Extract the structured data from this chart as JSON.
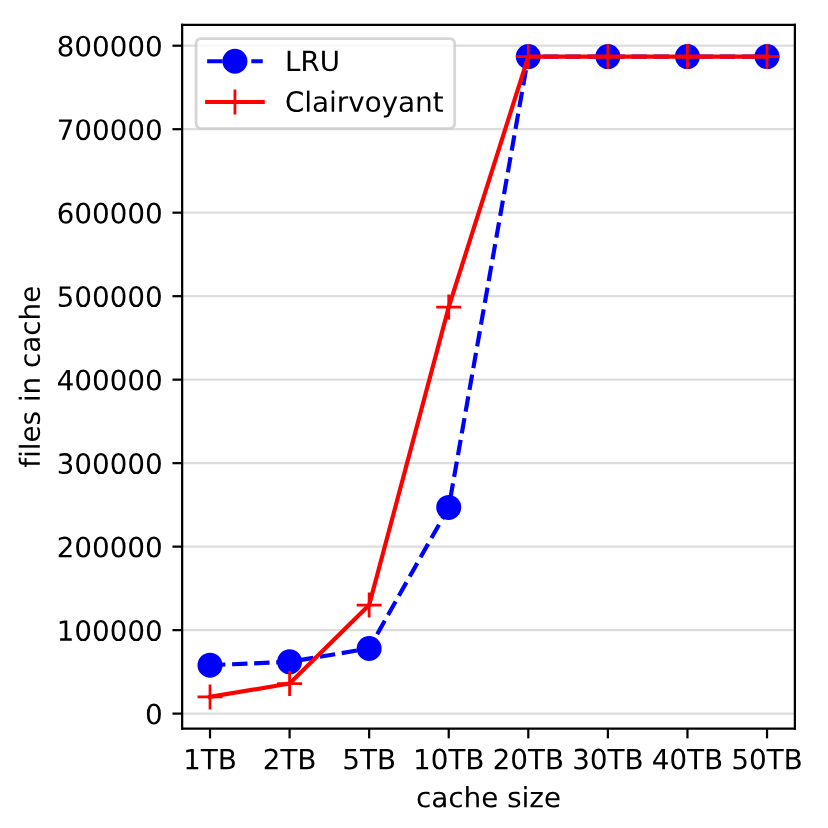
{
  "chart_data": {
    "type": "line",
    "xlabel": "cache size",
    "ylabel": "files in cache",
    "categories": [
      "1TB",
      "2TB",
      "5TB",
      "10TB",
      "20TB",
      "30TB",
      "40TB",
      "50TB"
    ],
    "series": [
      {
        "name": "LRU",
        "color": "#0000ff",
        "marker": "circle",
        "line_style": "dashed",
        "values": [
          58000,
          62000,
          78000,
          247000,
          787000,
          787000,
          787000,
          787000
        ]
      },
      {
        "name": "Clairvoyant",
        "color": "#ff0000",
        "marker": "cross",
        "line_style": "solid",
        "values": [
          20000,
          36000,
          130000,
          487000,
          787000,
          787000,
          787000,
          787000
        ]
      }
    ],
    "ylim": [
      -18000,
      825000
    ],
    "yticks": [
      0,
      100000,
      200000,
      300000,
      400000,
      500000,
      600000,
      700000,
      800000
    ],
    "grid": "y",
    "legend": "top left"
  }
}
